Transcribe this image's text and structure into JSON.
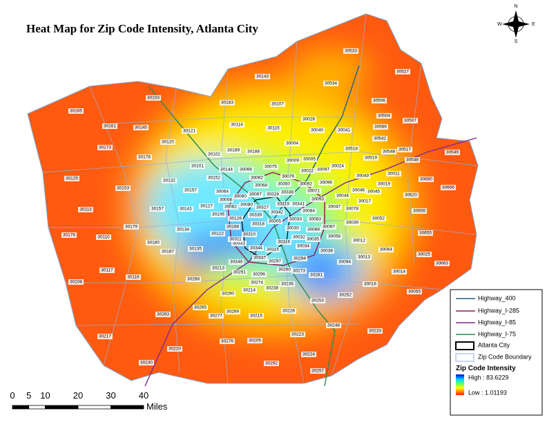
{
  "title": "Heat Map for Zip Code Intensity, Atlanta City",
  "zip_labels": [
    "30533",
    "30143",
    "30527",
    "30534",
    "30506",
    "30103",
    "30183",
    "30107",
    "30165",
    "30504",
    "30507",
    "30028",
    "30114",
    "30566",
    "30161",
    "30145",
    "30115",
    "30040",
    "30041",
    "30121",
    "30542",
    "30120",
    "30004",
    "30173",
    "30518",
    "30548",
    "30517",
    "30189",
    "30188",
    "30102",
    "30549",
    "30178",
    "30005",
    "30519",
    "30009",
    "30548",
    "30101",
    "30144",
    "30066",
    "30075",
    "30024",
    "30022",
    "30097",
    "30011",
    "30043",
    "30062",
    "30076",
    "30125",
    "30132",
    "30152",
    "30680",
    "30092",
    "30096",
    "30068",
    "30350",
    "30019",
    "30153",
    "30157",
    "30064",
    "30067",
    "30338",
    "30071",
    "30046",
    "30045",
    "30666",
    "30060",
    "30328",
    "30093",
    "30044",
    "30620",
    "30008",
    "30319",
    "30341",
    "30017",
    "30127",
    "30082",
    "30080",
    "30327",
    "30047",
    "30078",
    "30656",
    "30113",
    "30157",
    "30141",
    "30106",
    "30342",
    "30084",
    "30126",
    "30033",
    "30083",
    "30052",
    "30179",
    "30168",
    "30318",
    "30030",
    "30087",
    "30039",
    "30134",
    "30339",
    "30305",
    "30122",
    "30310",
    "30088",
    "30176",
    "30110",
    "30655",
    "30331",
    "30032",
    "30058",
    "30311",
    "30180",
    "30316",
    "30034",
    "30035",
    "30012",
    "30344",
    "30038",
    "30064",
    "30187",
    "30135",
    "30025",
    "30315",
    "30337",
    "30297",
    "30294",
    "30013",
    "30094",
    "30349",
    "30663",
    "30117",
    "30213",
    "30260",
    "30273",
    "30291",
    "30014",
    "30296",
    "30281",
    "30268",
    "30108",
    "30116",
    "30274",
    "30236",
    "30214",
    "30238",
    "30016",
    "30290",
    "30252",
    "30055",
    "30253",
    "30265",
    "30228",
    "30263",
    "30277",
    "30269",
    "30215",
    "30248",
    "30233",
    "30217",
    "30223",
    "30276",
    "30205",
    "30220",
    "30224",
    "30230",
    "30292",
    "30257"
  ],
  "legend": {
    "items": [
      "Highway_400",
      "Highway_I-285",
      "Highway_I-85",
      "Highway_I-75",
      "Atlanta City",
      "Zip Code Boundary"
    ],
    "intensity_title": "Zip Code Intensity",
    "high": "High : 83.6229",
    "low": "Low : 1.01193"
  },
  "scale_bar": {
    "ticks": [
      0,
      5,
      10,
      20,
      30,
      40
    ],
    "unit": "Miles"
  },
  "compass": {
    "n": "N",
    "s": "S",
    "e": "E",
    "w": "W"
  }
}
